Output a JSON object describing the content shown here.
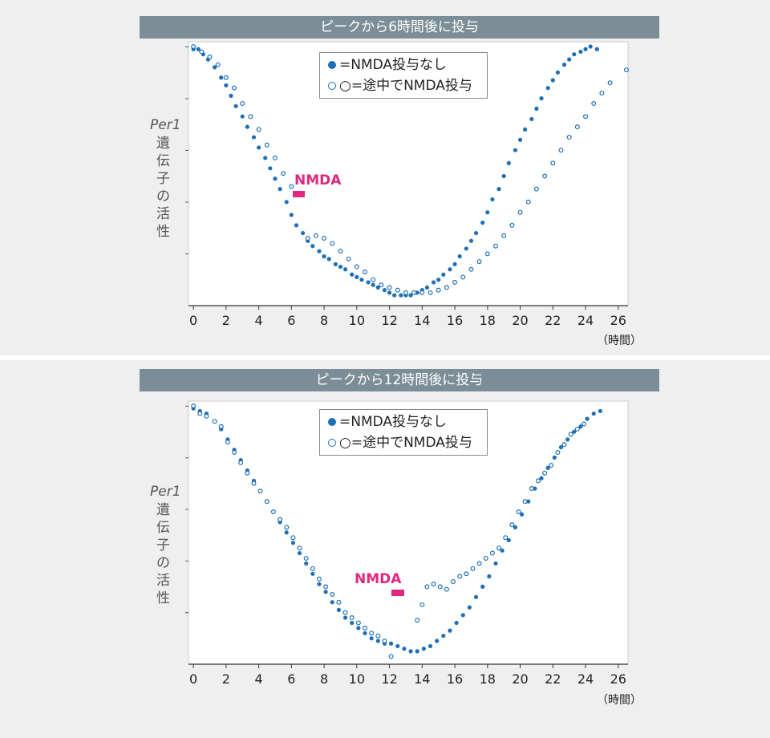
{
  "colors": {
    "series": "#1d6fb6",
    "nmda": "#e0287e",
    "title_bar": "#7b8d96",
    "background": "#efefef"
  },
  "x_unit": "（時間）",
  "ylabel_italic": "Per1",
  "ylabel_text": "遺伝子の活性",
  "chart_data": [
    {
      "type": "scatter",
      "title": "ピークから6時間後に投与",
      "xlabel": "（時間）",
      "ylabel": "Per1 遺伝子の活性",
      "xlim": [
        -0.3,
        26.6
      ],
      "ylim": [
        0,
        100
      ],
      "xticks": [
        0,
        2,
        4,
        6,
        8,
        10,
        12,
        14,
        16,
        18,
        20,
        22,
        24,
        26
      ],
      "legend": {
        "position": "top-center",
        "entries": [
          "=NMDA投与なし",
          "○=途中でNMDA投与"
        ]
      },
      "annotation": {
        "text": "NMDA",
        "x_start": 6.1,
        "x_end": 6.8,
        "y": 43
      },
      "series": [
        {
          "name": "=NMDA投与なし",
          "marker": "filled",
          "x": [
            0,
            0.3,
            0.6,
            0.9,
            1.3,
            1.7,
            2.0,
            2.3,
            2.6,
            3.0,
            3.3,
            3.7,
            4.0,
            4.4,
            4.7,
            5.0,
            5.3,
            5.7,
            6.0,
            6.3,
            6.7,
            7.0,
            7.3,
            7.7,
            8.0,
            8.3,
            8.7,
            9.0,
            9.3,
            9.7,
            10.0,
            10.3,
            10.7,
            11.0,
            11.3,
            11.7,
            12.0,
            12.3,
            12.7,
            13.0,
            13.3,
            13.7,
            14.0,
            14.3,
            14.7,
            15.0,
            15.3,
            15.7,
            16.0,
            16.3,
            16.7,
            17.0,
            17.3,
            17.7,
            18.0,
            18.3,
            18.7,
            19.0,
            19.3,
            19.7,
            20.0,
            20.3,
            20.7,
            21.0,
            21.3,
            21.7,
            22.0,
            22.3,
            22.7,
            23.0,
            23.3,
            23.7,
            24.0,
            24.3,
            24.7
          ],
          "y": [
            99,
            99,
            97,
            95,
            92,
            88,
            85,
            81,
            77,
            73,
            69,
            65,
            61,
            57,
            53,
            49,
            45,
            40,
            35,
            31,
            28,
            25,
            23,
            21,
            19,
            18,
            16,
            15,
            14,
            12,
            11,
            10,
            9,
            8,
            7,
            6,
            5,
            4,
            4,
            4,
            4,
            5,
            6,
            7,
            9,
            10,
            12,
            14,
            16,
            19,
            22,
            25,
            28,
            32,
            36,
            41,
            45,
            50,
            55,
            60,
            64,
            68,
            72,
            76,
            80,
            84,
            87,
            90,
            93,
            95,
            97,
            98,
            99,
            100,
            99
          ]
        },
        {
          "name": "○=途中でNMDA投与",
          "marker": "open",
          "x": [
            0,
            0.5,
            1.0,
            1.5,
            2.0,
            2.5,
            3.0,
            3.5,
            4.0,
            4.5,
            5.0,
            5.5,
            6.0,
            7.0,
            7.5,
            8.0,
            8.5,
            9.0,
            9.5,
            10.0,
            10.5,
            11.0,
            11.5,
            12.0,
            12.5,
            13.0,
            13.5,
            14.0,
            14.5,
            15.0,
            15.5,
            16.0,
            16.5,
            17.0,
            17.5,
            18.0,
            18.5,
            19.0,
            19.5,
            20.0,
            20.5,
            21.0,
            21.5,
            22.0,
            22.5,
            23.0,
            23.5,
            24.0,
            24.5,
            25.0,
            25.5,
            26.5
          ],
          "y": [
            100,
            98,
            96,
            93,
            88,
            84,
            78,
            73,
            68,
            62,
            57,
            51,
            46,
            26,
            27,
            26,
            24,
            21,
            18,
            15,
            13,
            10,
            8,
            7,
            6,
            5,
            5,
            5,
            5,
            6,
            7,
            9,
            11,
            14,
            17,
            20,
            23,
            27,
            31,
            36,
            40,
            45,
            50,
            55,
            60,
            65,
            69,
            73,
            78,
            82,
            86,
            91
          ]
        }
      ]
    },
    {
      "type": "scatter",
      "title": "ピークから12時間後に投与",
      "xlabel": "（時間）",
      "ylabel": "Per1 遺伝子の活性",
      "xlim": [
        -0.3,
        26.6
      ],
      "ylim": [
        0,
        100
      ],
      "xticks": [
        0,
        2,
        4,
        6,
        8,
        10,
        12,
        14,
        16,
        18,
        20,
        22,
        24,
        26
      ],
      "legend": {
        "position": "top-center",
        "entries": [
          "=NMDA投与なし",
          "○=途中でNMDA投与"
        ]
      },
      "annotation": {
        "text": "NMDA",
        "x_start": 12.1,
        "x_end": 12.9,
        "y": 26
      },
      "series": [
        {
          "name": "=NMDA投与なし",
          "marker": "filled",
          "x": [
            0,
            0.4,
            0.8,
            1.3,
            1.7,
            2.1,
            2.5,
            2.9,
            3.3,
            3.7,
            4.1,
            4.5,
            4.9,
            5.3,
            5.7,
            6.1,
            6.5,
            6.9,
            7.3,
            7.7,
            8.1,
            8.5,
            8.9,
            9.3,
            9.7,
            10.1,
            10.5,
            10.9,
            11.3,
            11.7,
            12.1,
            12.5,
            12.9,
            13.3,
            13.7,
            14.1,
            14.5,
            14.9,
            15.3,
            15.7,
            16.1,
            16.5,
            16.9,
            17.3,
            17.7,
            18.1,
            18.5,
            18.9,
            19.3,
            19.7,
            20.1,
            20.5,
            20.9,
            21.3,
            21.7,
            22.1,
            22.5,
            22.9,
            23.3,
            23.7,
            24.1,
            24.5,
            24.9
          ],
          "y": [
            99,
            98,
            97,
            94,
            91,
            87,
            83,
            79,
            75,
            71,
            67,
            63,
            59,
            55,
            51,
            47,
            43,
            39,
            35,
            31,
            28,
            24,
            21,
            18,
            16,
            14,
            12,
            10,
            9,
            8,
            8,
            7,
            6,
            5,
            5,
            6,
            7,
            9,
            11,
            13,
            16,
            19,
            22,
            26,
            30,
            34,
            39,
            44,
            48,
            53,
            58,
            63,
            68,
            72,
            76,
            80,
            84,
            87,
            90,
            92,
            95,
            97,
            98
          ]
        },
        {
          "name": "○=途中でNMDA投与",
          "marker": "open",
          "x": [
            0,
            0.4,
            0.8,
            1.3,
            1.7,
            2.1,
            2.5,
            2.9,
            3.3,
            3.7,
            4.1,
            4.5,
            4.9,
            5.3,
            5.7,
            6.1,
            6.5,
            6.9,
            7.3,
            7.7,
            8.1,
            8.5,
            8.9,
            9.3,
            9.7,
            10.1,
            10.5,
            10.9,
            11.3,
            11.7,
            12.1,
            13.7,
            14.0,
            14.3,
            14.7,
            15.1,
            15.5,
            15.9,
            16.3,
            16.7,
            17.1,
            17.5,
            17.9,
            18.3,
            18.7,
            19.1,
            19.5,
            19.9,
            20.3,
            20.7,
            21.1,
            21.5,
            21.9,
            22.3,
            22.7,
            23.1,
            23.5,
            23.9
          ],
          "y": [
            100,
            97,
            96,
            94,
            92,
            86,
            82,
            78,
            74,
            70,
            67,
            63,
            59,
            56,
            53,
            49,
            45,
            41,
            37,
            33,
            30,
            27,
            24,
            20,
            18,
            16,
            14,
            12,
            11,
            9,
            3,
            17,
            23,
            30,
            31,
            30,
            29,
            32,
            34,
            35,
            37,
            39,
            41,
            43,
            45,
            49,
            54,
            59,
            63,
            68,
            71,
            74,
            77,
            82,
            85,
            89,
            91,
            93
          ]
        }
      ]
    }
  ]
}
